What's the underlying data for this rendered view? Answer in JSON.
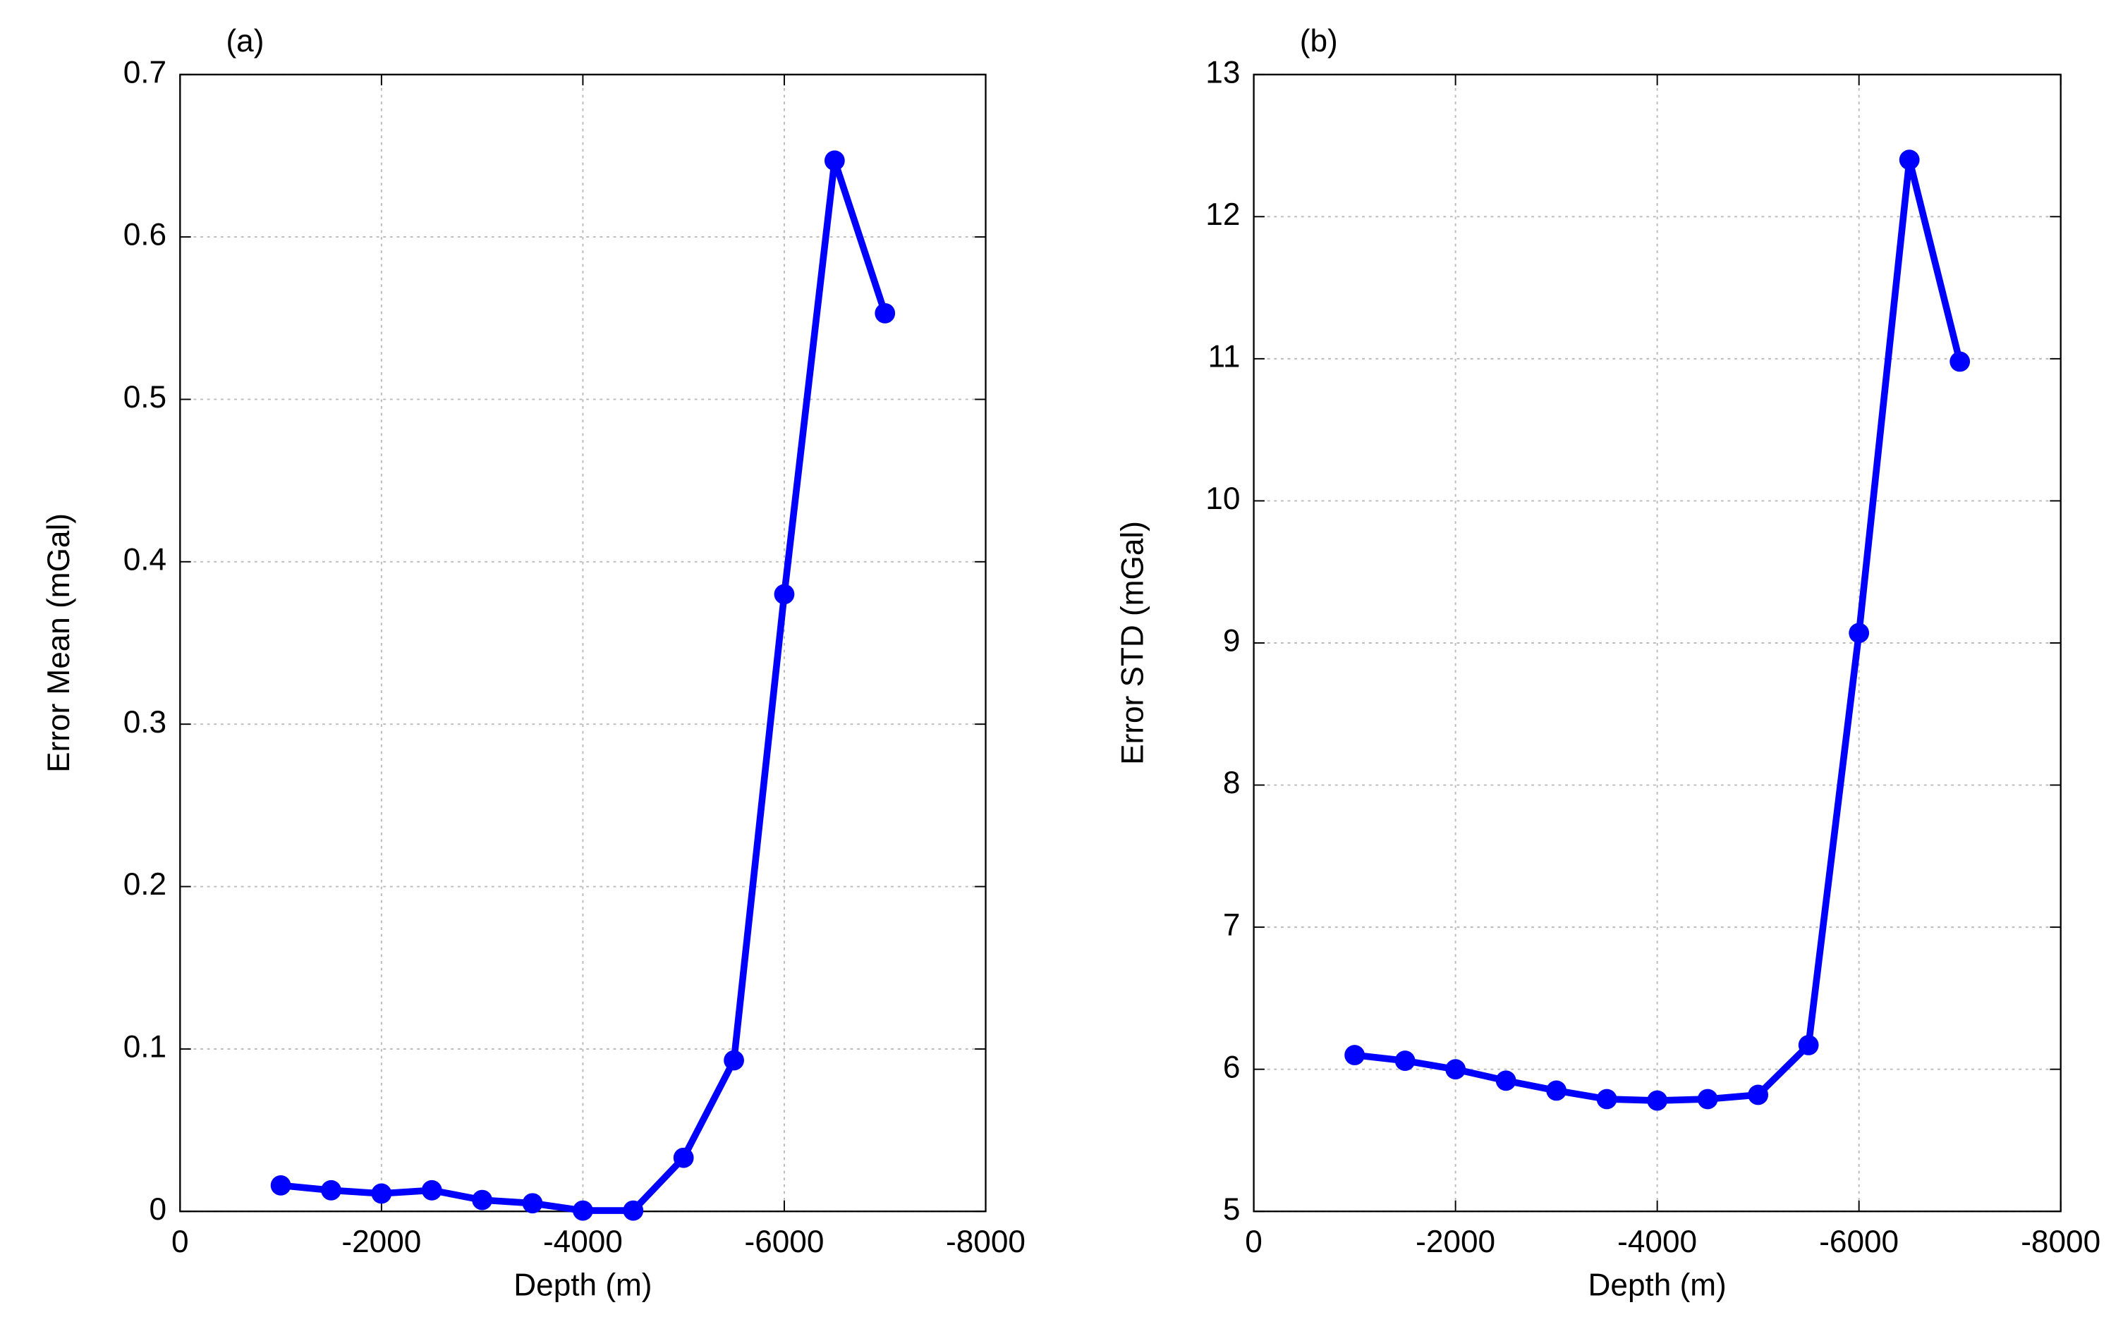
{
  "chart_data": [
    {
      "type": "line",
      "panel_label": "(a)",
      "x_label": "Depth (m)",
      "y_label": "Error Mean (mGal)",
      "x": [
        -1000,
        -1500,
        -2000,
        -2500,
        -3000,
        -3500,
        -4000,
        -4500,
        -5000,
        -5500,
        -6000,
        -6500,
        -7000
      ],
      "series": [
        {
          "color": "#0000ff",
          "values": [
            0.016,
            0.013,
            0.011,
            0.013,
            0.007,
            0.005,
            0.0005,
            0.0005,
            0.033,
            0.093,
            0.38,
            0.647,
            0.553
          ]
        }
      ],
      "xlim": [
        0,
        -8000
      ],
      "xticks": [
        0,
        -2000,
        -4000,
        -6000,
        -8000
      ],
      "ylim": [
        0,
        0.7
      ],
      "yticks": [
        0,
        0.1,
        0.2,
        0.3,
        0.4,
        0.5,
        0.6,
        0.7
      ],
      "grid": true
    },
    {
      "type": "line",
      "panel_label": "(b)",
      "x_label": "Depth (m)",
      "y_label": "Error STD (mGal)",
      "x": [
        -1000,
        -1500,
        -2000,
        -2500,
        -3000,
        -3500,
        -4000,
        -4500,
        -5000,
        -5500,
        -6000,
        -6500,
        -7000
      ],
      "series": [
        {
          "color": "#0000ff",
          "values": [
            6.1,
            6.06,
            6.0,
            5.92,
            5.85,
            5.79,
            5.78,
            5.79,
            5.82,
            6.17,
            9.07,
            12.4,
            10.98
          ]
        }
      ],
      "xlim": [
        0,
        -8000
      ],
      "xticks": [
        0,
        -2000,
        -4000,
        -6000,
        -8000
      ],
      "ylim": [
        5,
        13
      ],
      "yticks": [
        5,
        6,
        7,
        8,
        9,
        10,
        11,
        12,
        13
      ],
      "grid": true
    }
  ]
}
